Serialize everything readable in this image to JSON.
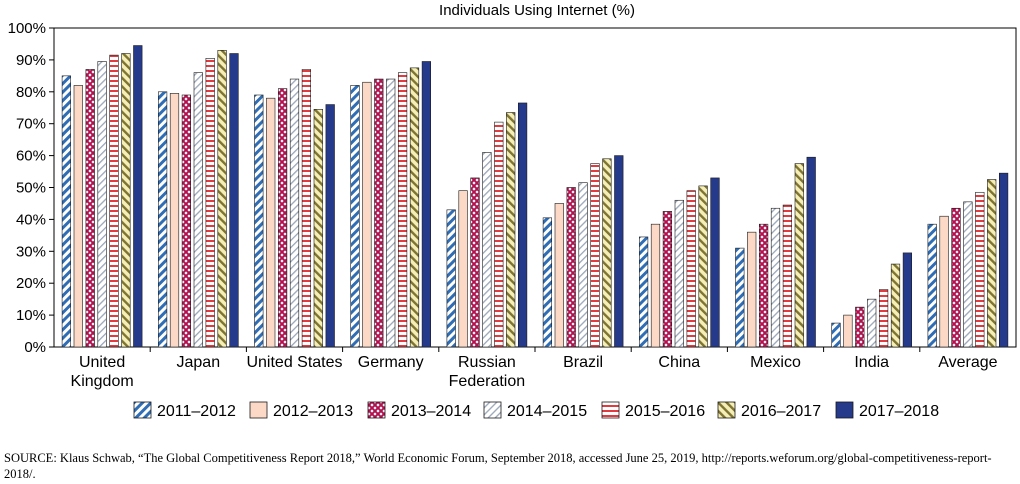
{
  "chart_data": {
    "type": "bar",
    "title": "Individuals Using Internet (%)",
    "ylim": [
      0,
      100
    ],
    "yticks": [
      "0%",
      "10%",
      "20%",
      "30%",
      "40%",
      "50%",
      "60%",
      "70%",
      "80%",
      "90%",
      "100%"
    ],
    "categories": [
      [
        "United",
        "Kingdom"
      ],
      [
        "Japan"
      ],
      [
        "United States"
      ],
      [
        "Germany"
      ],
      [
        "Russian",
        "Federation"
      ],
      [
        "Brazil"
      ],
      [
        "China"
      ],
      [
        "Mexico"
      ],
      [
        "India"
      ],
      [
        "Average"
      ]
    ],
    "series": [
      {
        "name": "2011–2012",
        "values": [
          85,
          80,
          79,
          82,
          43,
          40.5,
          34.5,
          31,
          7.5,
          38.5
        ]
      },
      {
        "name": "2012–2013",
        "values": [
          82,
          79.5,
          78,
          83,
          49,
          45,
          38.5,
          36,
          10,
          41
        ]
      },
      {
        "name": "2013–2014",
        "values": [
          87,
          79,
          81,
          84,
          53,
          50,
          42.5,
          38.5,
          12.5,
          43.5
        ]
      },
      {
        "name": "2014–2015",
        "values": [
          89.5,
          86,
          84,
          84,
          61,
          51.5,
          46,
          43.5,
          15,
          45.5
        ]
      },
      {
        "name": "2015–2016",
        "values": [
          91.5,
          90.5,
          87,
          86,
          70.5,
          57.5,
          49,
          44.5,
          18,
          48.5
        ]
      },
      {
        "name": "2016–2017",
        "values": [
          92,
          93,
          74.5,
          87.5,
          73.5,
          59,
          50.5,
          57.5,
          26,
          52.5
        ]
      },
      {
        "name": "2017–2018",
        "values": [
          94.5,
          92,
          76,
          89.5,
          76.5,
          60,
          53,
          59.5,
          29.5,
          54.5
        ]
      }
    ],
    "legend": "bottom",
    "grid": false
  },
  "source_text": "SOURCE: Klaus Schwab, “The Global Competitiveness Report 2018,” World Economic Forum, September 2018, accessed June 25, 2019, http://reports.weforum.org/global-competitiveness-report-2018/."
}
